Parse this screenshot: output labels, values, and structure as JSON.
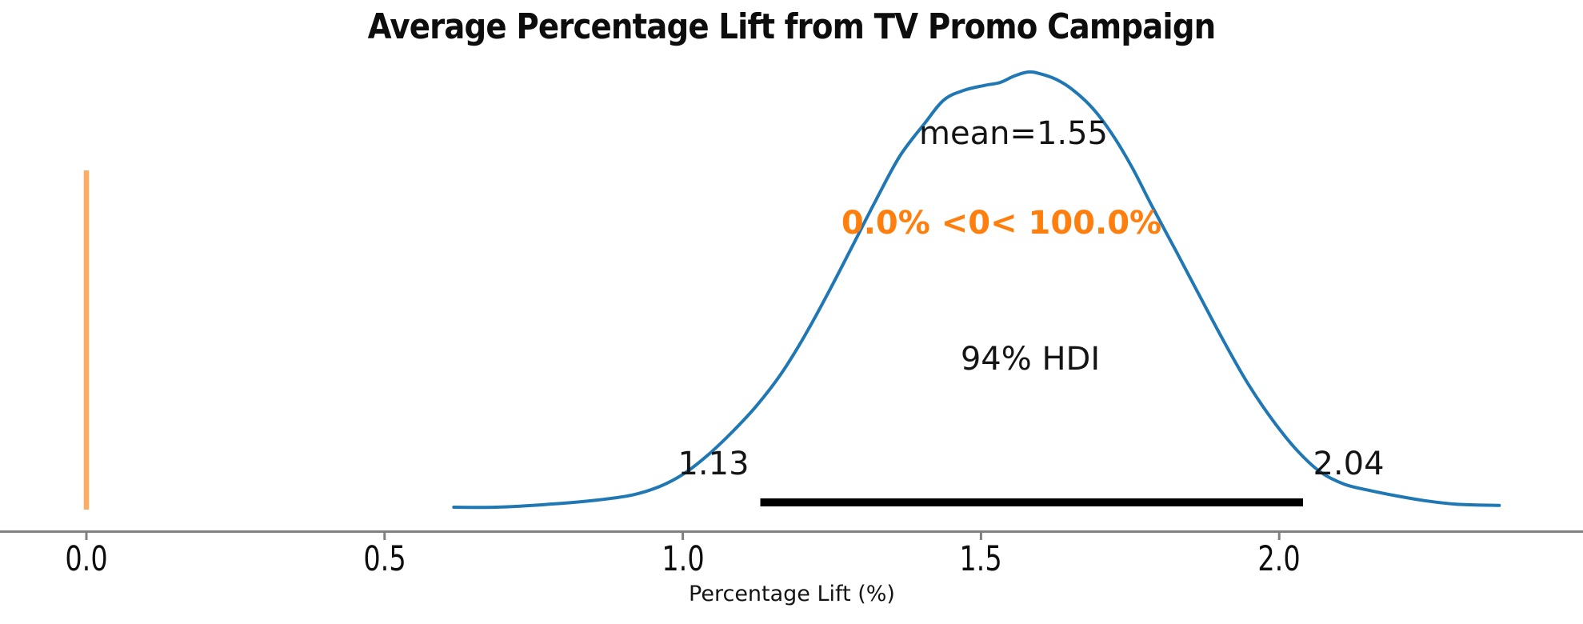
{
  "figure": {
    "kind": "posterior-density-plot"
  },
  "annotations": {
    "mean": "mean=1.55",
    "ref_val": "0.0% <0< 100.0%",
    "hdi_label": "94% HDI",
    "hdi_lower": "1.13",
    "hdi_upper": "2.04"
  },
  "colors": {
    "curve": "#1f77b4",
    "ref_line": "#ffac62",
    "ref_text": "#ff7f0e",
    "hdi_bar": "#000000",
    "axis": "#808080",
    "text": "#141414"
  },
  "chart_data": {
    "type": "line",
    "subtype": "kde-posterior",
    "title": "Average Percentage Lift from TV Promo Campaign",
    "xlabel": "Percentage Lift (%)",
    "ylabel": "",
    "x_ticks": [
      0.0,
      0.5,
      1.0,
      1.5,
      2.0
    ],
    "x_tick_labels": [
      "0.0",
      "0.5",
      "1.0",
      "1.5",
      "2.0"
    ],
    "xlim": [
      -0.145,
      2.51
    ],
    "grid": false,
    "legend": "none",
    "mean": 1.55,
    "ref_val": 0.0,
    "ref_val_pct_below": 0.0,
    "ref_val_pct_above": 100.0,
    "hdi": {
      "prob": 0.94,
      "lower": 1.13,
      "upper": 2.04
    },
    "kde": {
      "x": [
        0.616,
        0.687,
        0.768,
        0.848,
        0.915,
        0.962,
        1.002,
        1.043,
        1.083,
        1.123,
        1.164,
        1.204,
        1.244,
        1.284,
        1.324,
        1.364,
        1.405,
        1.438,
        1.472,
        1.505,
        1.532,
        1.556,
        1.579,
        1.599,
        1.626,
        1.653,
        1.687,
        1.72,
        1.754,
        1.787,
        1.828,
        1.868,
        1.908,
        1.948,
        1.989,
        2.029,
        2.069,
        2.109,
        2.15,
        2.197,
        2.244,
        2.297,
        2.369
      ],
      "density": [
        0.0,
        0.0,
        0.006,
        0.015,
        0.028,
        0.048,
        0.077,
        0.121,
        0.173,
        0.232,
        0.305,
        0.393,
        0.493,
        0.599,
        0.706,
        0.807,
        0.881,
        0.936,
        0.958,
        0.969,
        0.976,
        0.991,
        1.0,
        0.996,
        0.983,
        0.96,
        0.917,
        0.857,
        0.779,
        0.691,
        0.586,
        0.482,
        0.379,
        0.283,
        0.2,
        0.132,
        0.081,
        0.053,
        0.039,
        0.026,
        0.015,
        0.007,
        0.004
      ]
    }
  }
}
